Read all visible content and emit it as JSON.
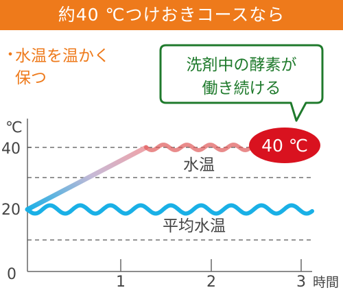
{
  "banner": {
    "title": "約40 ℃つけおきコースなら"
  },
  "note": {
    "bullet": "・",
    "text": "水温を温かく保つ"
  },
  "callout": {
    "text_line1": "洗剤中の酵素が",
    "text_line2": "働き続ける"
  },
  "badge": {
    "text": "40 ℃"
  },
  "chart_data": {
    "type": "line",
    "ylabel": "℃",
    "xlabel": "時間",
    "x_ticks": [
      "1",
      "2",
      "3"
    ],
    "y_ticks": [
      "0",
      "20",
      "40"
    ],
    "xlim": [
      0,
      3
    ],
    "ylim": [
      0,
      40
    ],
    "series": [
      {
        "name": "水温",
        "x": [
          0,
          1.3,
          2.45
        ],
        "y": [
          20,
          40,
          40
        ]
      },
      {
        "name": "平均水温",
        "x": [
          0,
          3
        ],
        "y": [
          20,
          20
        ]
      }
    ],
    "reference_lines_y": [
      30,
      10
    ],
    "colors": {
      "water": "#e05a5a",
      "avg": "#1ab0e6",
      "orange": "#ee7a1b",
      "green": "#1f7a2c",
      "badge": "#d9121f"
    }
  }
}
